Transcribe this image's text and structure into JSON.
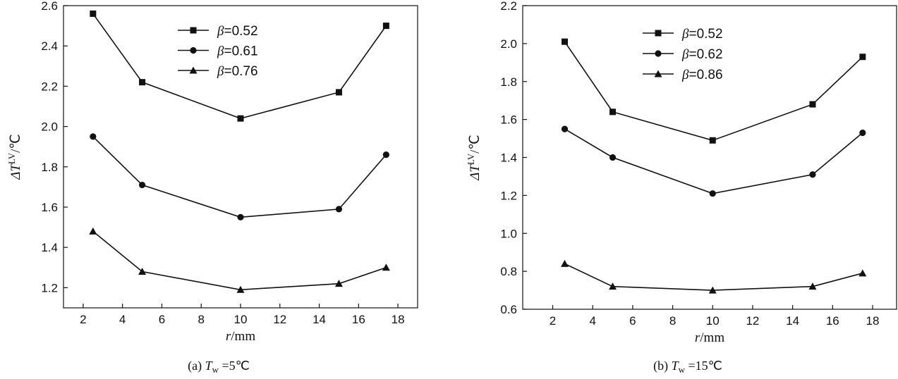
{
  "chart_data": [
    {
      "type": "line",
      "xlabel_italic": "r",
      "xlabel_unit": "/mm",
      "ylabel_prefix": "ΔT",
      "ylabel_sup": "LV",
      "ylabel_unit": "/℃",
      "xlim": [
        1,
        19
      ],
      "ylim": [
        1.1,
        2.6
      ],
      "xticks": [
        2,
        4,
        6,
        8,
        10,
        12,
        14,
        16,
        18
      ],
      "yticks": [
        1.2,
        1.4,
        1.6,
        1.8,
        2.0,
        2.2,
        2.4,
        2.6
      ],
      "legend_position": "top-right",
      "caption_prefix": "(a) ",
      "caption_var": "T",
      "caption_sub": "w",
      "caption_value": " =5℃",
      "series": [
        {
          "name": "β=0.52",
          "beta_symbol": "β",
          "beta_value": "=0.52",
          "marker": "square",
          "x": [
            2.5,
            5,
            10,
            15,
            17.4
          ],
          "y": [
            2.56,
            2.22,
            2.04,
            2.17,
            2.5
          ]
        },
        {
          "name": "β=0.61",
          "beta_symbol": "β",
          "beta_value": "=0.61",
          "marker": "circle",
          "x": [
            2.5,
            5,
            10,
            15,
            17.4
          ],
          "y": [
            1.95,
            1.71,
            1.55,
            1.59,
            1.86
          ]
        },
        {
          "name": "β=0.76",
          "beta_symbol": "β",
          "beta_value": "=0.76",
          "marker": "triangle",
          "x": [
            2.5,
            5,
            10,
            15,
            17.4
          ],
          "y": [
            1.48,
            1.28,
            1.19,
            1.22,
            1.3
          ]
        }
      ]
    },
    {
      "type": "line",
      "xlabel_italic": "r",
      "xlabel_unit": "/mm",
      "ylabel_prefix": "ΔT",
      "ylabel_sup": "LV",
      "ylabel_unit": "/℃",
      "xlim": [
        0.5,
        19.2
      ],
      "ylim": [
        0.6,
        2.2
      ],
      "xticks": [
        2,
        4,
        6,
        8,
        10,
        12,
        14,
        16,
        18
      ],
      "yticks": [
        0.6,
        0.8,
        1.0,
        1.2,
        1.4,
        1.6,
        1.8,
        2.0,
        2.2
      ],
      "legend_position": "top-right",
      "caption_prefix": "(b) ",
      "caption_var": "T",
      "caption_sub": "w",
      "caption_value": " =15℃",
      "series": [
        {
          "name": "β=0.52",
          "beta_symbol": "β",
          "beta_value": "=0.52",
          "marker": "square",
          "x": [
            2.6,
            5,
            10,
            15,
            17.5
          ],
          "y": [
            2.01,
            1.64,
            1.49,
            1.68,
            1.93
          ]
        },
        {
          "name": "β=0.62",
          "beta_symbol": "β",
          "beta_value": "=0.62",
          "marker": "circle",
          "x": [
            2.6,
            5,
            10,
            15,
            17.5
          ],
          "y": [
            1.55,
            1.4,
            1.21,
            1.31,
            1.53
          ]
        },
        {
          "name": "β=0.86",
          "beta_symbol": "β",
          "beta_value": "=0.86",
          "marker": "triangle",
          "x": [
            2.6,
            5,
            10,
            15,
            17.5
          ],
          "y": [
            0.84,
            0.72,
            0.7,
            0.72,
            0.79
          ]
        }
      ]
    }
  ]
}
